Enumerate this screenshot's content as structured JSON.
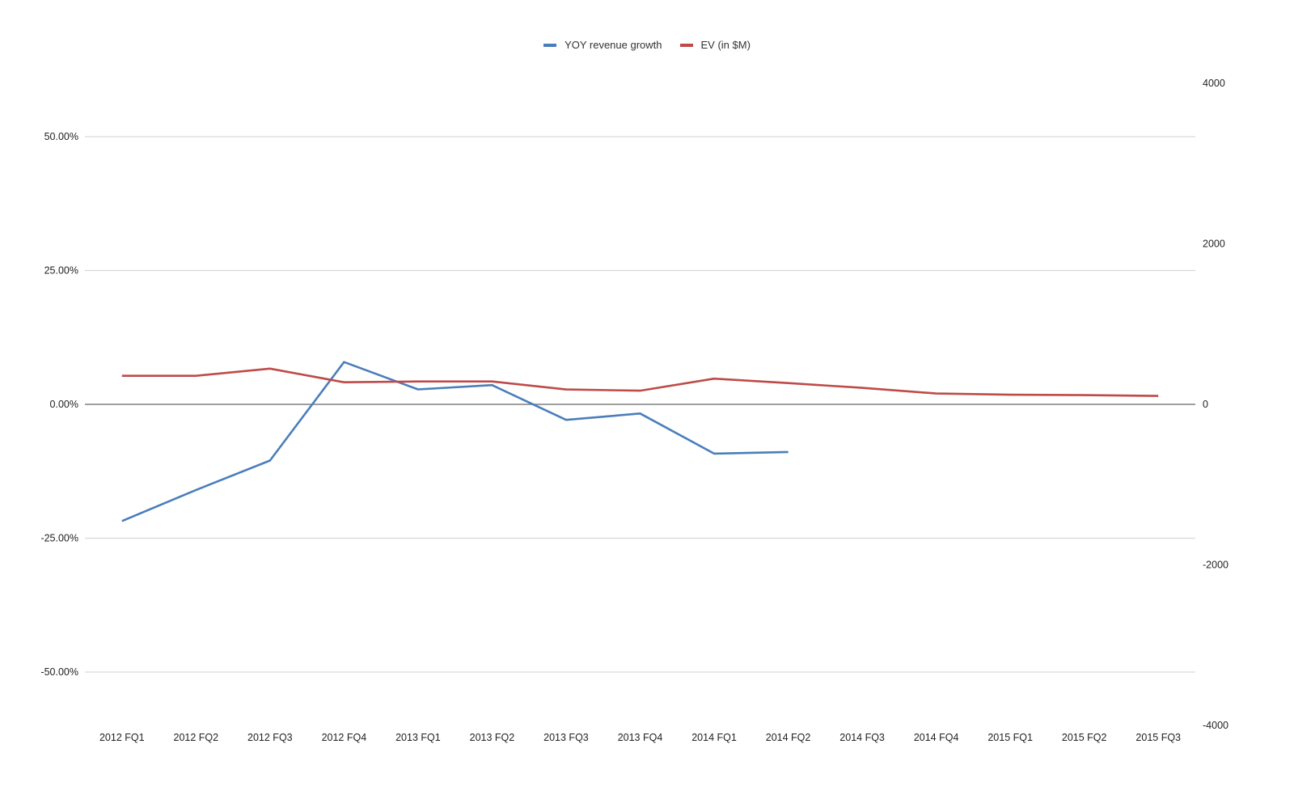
{
  "chart_data": {
    "type": "line",
    "categories": [
      "2012 FQ1",
      "2012 FQ2",
      "2012 FQ3",
      "2012 FQ4",
      "2013 FQ1",
      "2013 FQ2",
      "2013 FQ3",
      "2013 FQ4",
      "2014 FQ1",
      "2014 FQ2",
      "2014 FQ3",
      "2014 FQ4",
      "2015 FQ1",
      "2015 FQ2",
      "2015 FQ3"
    ],
    "left_axis": {
      "range": [
        -0.6,
        0.6
      ],
      "ticks": [
        -0.5,
        -0.25,
        0,
        0.25,
        0.5
      ],
      "tick_labels": [
        "-50.00%",
        "-25.00%",
        "0.00%",
        "25.00%",
        "50.00%"
      ]
    },
    "right_axis": {
      "range": [
        -4000,
        4000
      ],
      "ticks": [
        -4000,
        -2000,
        0,
        2000,
        4000
      ],
      "tick_labels": [
        "-4000",
        "-2000",
        "0",
        "2000",
        "4000"
      ]
    },
    "grid": true,
    "legend_position": "top-center",
    "series": [
      {
        "name": "YOY revenue growth",
        "axis": "left",
        "color": "#4a7ebb",
        "values": [
          -0.218,
          -0.16,
          -0.105,
          0.079,
          0.028,
          0.036,
          -0.029,
          -0.017,
          -0.092,
          -0.089,
          null,
          null,
          null,
          null,
          null
        ]
      },
      {
        "name": "EV (in $M)",
        "axis": "right",
        "color": "#be4b48",
        "values": [
          355,
          355,
          445,
          275,
          285,
          285,
          185,
          170,
          320,
          265,
          205,
          135,
          120,
          115,
          105
        ]
      }
    ]
  }
}
